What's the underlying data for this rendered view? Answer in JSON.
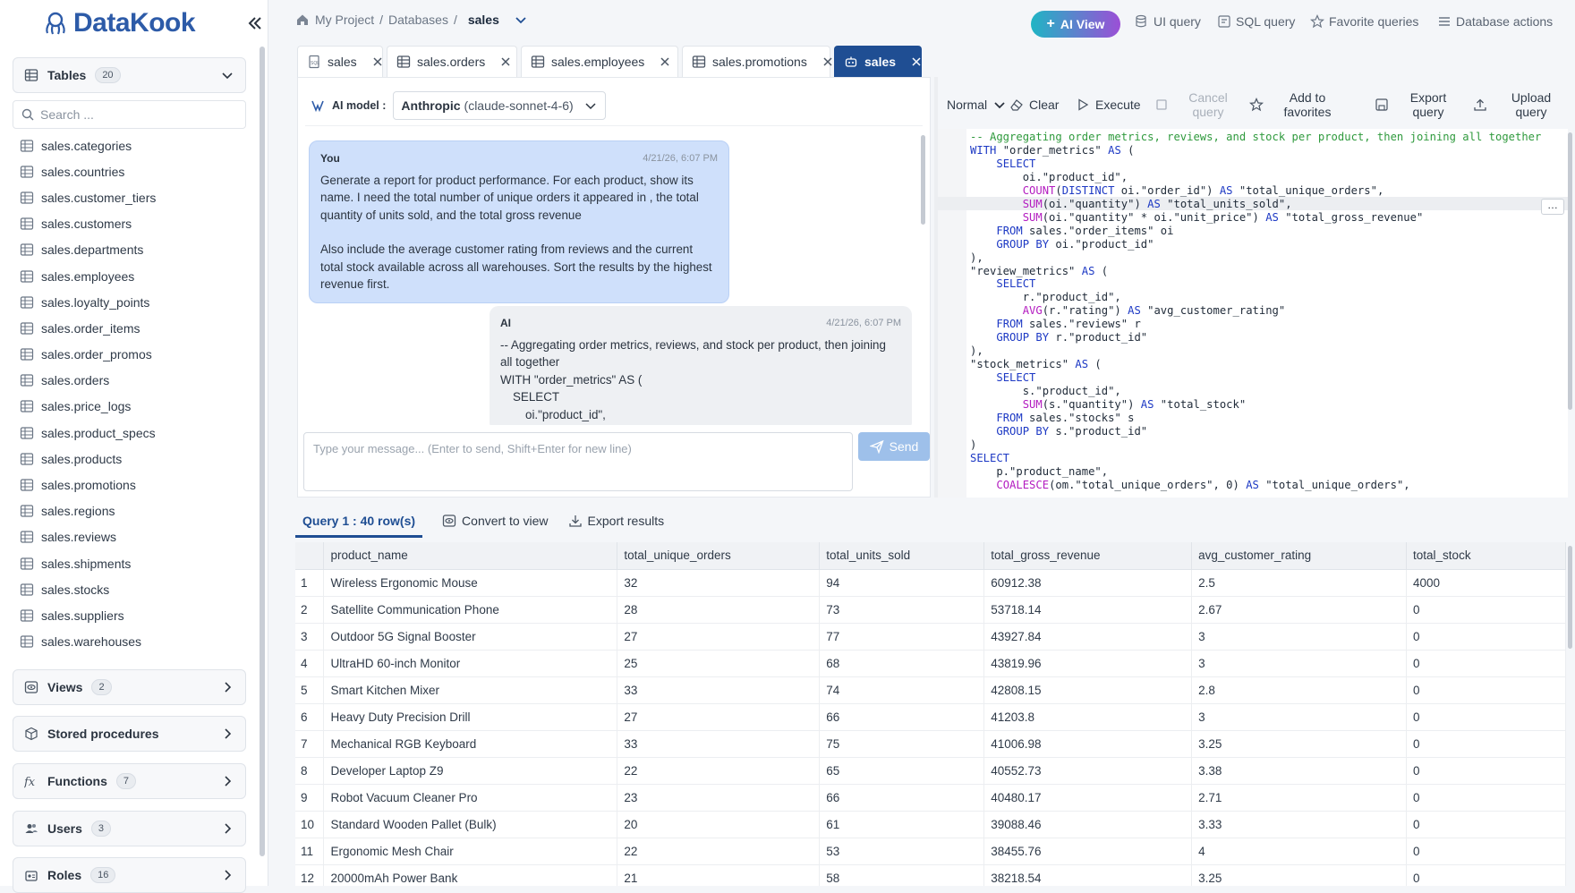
{
  "app": {
    "name": "DataKook"
  },
  "sidebar": {
    "tables": {
      "label": "Tables",
      "count": "20"
    },
    "search_placeholder": "Search ...",
    "table_items": [
      "sales.categories",
      "sales.countries",
      "sales.customer_tiers",
      "sales.customers",
      "sales.departments",
      "sales.employees",
      "sales.loyalty_points",
      "sales.order_items",
      "sales.order_promos",
      "sales.orders",
      "sales.price_logs",
      "sales.product_specs",
      "sales.products",
      "sales.promotions",
      "sales.regions",
      "sales.reviews",
      "sales.shipments",
      "sales.stocks",
      "sales.suppliers",
      "sales.warehouses"
    ],
    "views": {
      "label": "Views",
      "count": "2"
    },
    "procedures": {
      "label": "Stored procedures"
    },
    "functions": {
      "label": "Functions",
      "count": "7"
    },
    "users": {
      "label": "Users",
      "count": "3"
    },
    "roles": {
      "label": "Roles",
      "count": "16"
    }
  },
  "breadcrumb": {
    "project": "My Project",
    "sep1": "/",
    "databases": "Databases",
    "sep2": "/",
    "current": "sales"
  },
  "topbar": {
    "ai_view": "AI View",
    "ui_query": "UI query",
    "sql_query": "SQL query",
    "favorites": "Favorite queries",
    "db_actions": "Database actions"
  },
  "tabs": [
    "sales",
    "sales.orders",
    "sales.employees",
    "sales.promotions",
    "sales"
  ],
  "chat": {
    "model_label": "AI model :",
    "model_vendor": "Anthropic",
    "model_name": "(claude-sonnet-4-6)",
    "user": {
      "author": "You",
      "time": "4/21/26, 6:07 PM",
      "p1": "Generate a report for product performance. For each product, show its name. I need the total number  of unique orders it appeared in , the total quantity of units sold, and the total gross revenue",
      "p2": "Also include the average customer rating from reviews and the current total stock available across all warehouses. Sort the results by the highest revenue first."
    },
    "ai": {
      "author": "AI",
      "time": "4/21/26, 6:07 PM",
      "l1": "-- Aggregating order metrics, reviews, and stock per product, then joining all together",
      "l2": "WITH \"order_metrics\" AS (",
      "l3": "SELECT",
      "l4": "oi.\"product_id\","
    },
    "placeholder": "Type your message... (Enter to send, Shift+Enter for new line)",
    "send": "Send"
  },
  "sql_toolbar": {
    "mode": "Normal",
    "clear": "Clear",
    "execute": "Execute",
    "cancel": "Cancel query",
    "favorites": "Add to favorites",
    "export": "Export query",
    "upload": "Upload query"
  },
  "sql_lines": [
    "-- Aggregating order metrics, reviews, and stock per product, then joining all together",
    "WITH \"order_metrics\" AS (",
    "    SELECT",
    "        oi.\"product_id\",",
    "        COUNT(DISTINCT oi.\"order_id\") AS \"total_unique_orders\",",
    "        SUM(oi.\"quantity\") AS \"total_units_sold\",",
    "        SUM(oi.\"quantity\" * oi.\"unit_price\") AS \"total_gross_revenue\"",
    "    FROM sales.\"order_items\" oi",
    "    GROUP BY oi.\"product_id\"",
    "),",
    "\"review_metrics\" AS (",
    "    SELECT",
    "        r.\"product_id\",",
    "        AVG(r.\"rating\") AS \"avg_customer_rating\"",
    "    FROM sales.\"reviews\" r",
    "    GROUP BY r.\"product_id\"",
    "),",
    "\"stock_metrics\" AS (",
    "    SELECT",
    "        s.\"product_id\",",
    "        SUM(s.\"quantity\") AS \"total_stock\"",
    "    FROM sales.\"stocks\" s",
    "    GROUP BY s.\"product_id\"",
    ")",
    "SELECT",
    "    p.\"product_name\",",
    "    COALESCE(om.\"total_unique_orders\", 0) AS \"total_unique_orders\","
  ],
  "results": {
    "title": "Query 1 : 40 row(s)",
    "convert": "Convert to view",
    "export": "Export results",
    "columns": [
      "product_name",
      "total_unique_orders",
      "total_units_sold",
      "total_gross_revenue",
      "avg_customer_rating",
      "total_stock"
    ],
    "rows": [
      [
        "1",
        "Wireless Ergonomic Mouse",
        "32",
        "94",
        "60912.38",
        "2.5",
        "4000"
      ],
      [
        "2",
        "Satellite Communication Phone",
        "28",
        "73",
        "53718.14",
        "2.67",
        "0"
      ],
      [
        "3",
        "Outdoor 5G Signal Booster",
        "27",
        "77",
        "43927.84",
        "3",
        "0"
      ],
      [
        "4",
        "UltraHD 60-inch Monitor",
        "25",
        "68",
        "43819.96",
        "3",
        "0"
      ],
      [
        "5",
        "Smart Kitchen Mixer",
        "33",
        "74",
        "42808.15",
        "2.8",
        "0"
      ],
      [
        "6",
        "Heavy Duty Precision Drill",
        "27",
        "66",
        "41203.8",
        "3",
        "0"
      ],
      [
        "7",
        "Mechanical RGB Keyboard",
        "33",
        "75",
        "41006.98",
        "3.25",
        "0"
      ],
      [
        "8",
        "Developer Laptop Z9",
        "22",
        "65",
        "40552.73",
        "3.38",
        "0"
      ],
      [
        "9",
        "Robot Vacuum Cleaner Pro",
        "23",
        "66",
        "40480.17",
        "2.71",
        "0"
      ],
      [
        "10",
        "Standard Wooden Pallet (Bulk)",
        "20",
        "61",
        "39088.46",
        "3.33",
        "0"
      ],
      [
        "11",
        "Ergonomic Mesh Chair",
        "22",
        "53",
        "38455.76",
        "4",
        "0"
      ],
      [
        "12",
        "20000mAh Power Bank",
        "21",
        "58",
        "38218.54",
        "3.25",
        "0"
      ]
    ]
  }
}
